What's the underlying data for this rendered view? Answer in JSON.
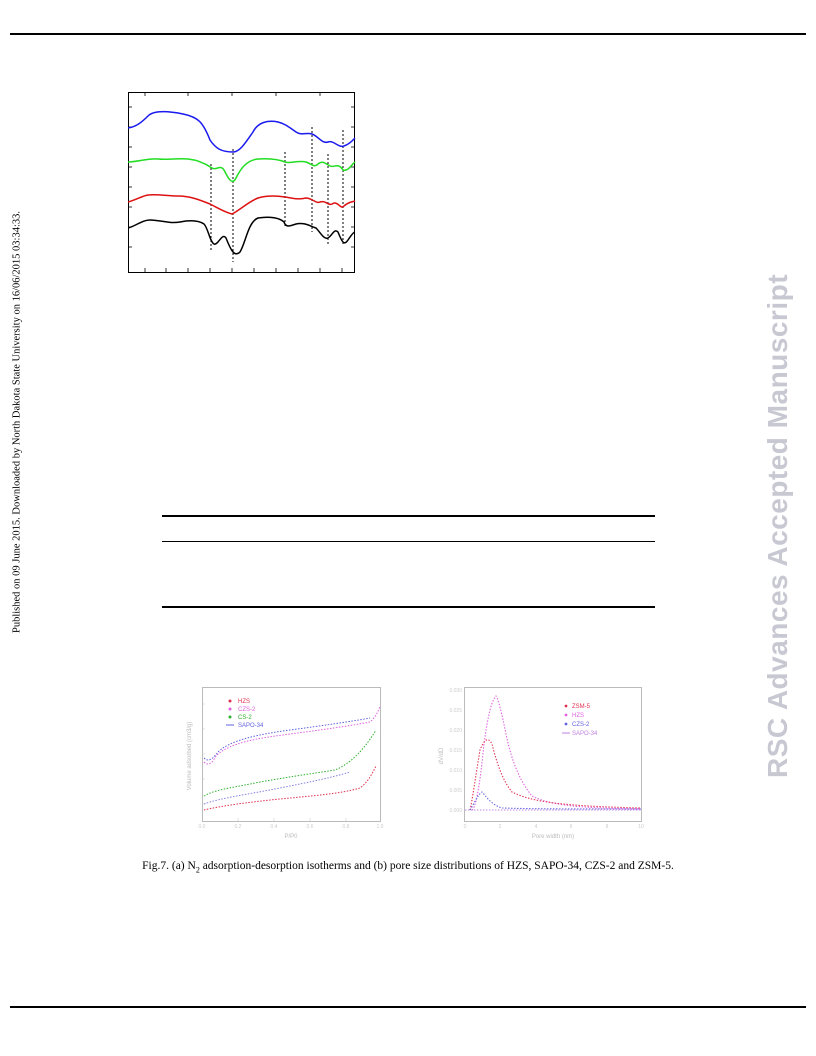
{
  "side_note": "Published on 09 June 2015. Downloaded by North Dakota State University on 16/06/2015 03:34:33.",
  "watermark": "RSC Advances Accepted Manuscript",
  "caption": {
    "prefix": "Fig.7. (a) N",
    "sub": "2",
    "suffix": " adsorption-desorption isotherms and (b) pore size distributions of HZS, SAPO-34, CZS-2 and ZSM-5."
  },
  "chart_data": [
    {
      "type": "line",
      "title": "",
      "xlabel": "",
      "ylabel": "",
      "series_colors": [
        "#1a1aee",
        "#22dd22",
        "#dd1111",
        "#000000"
      ],
      "note": "spectra with dashed reference lines; no axis labels legible"
    },
    {
      "type": "scatter",
      "panel": "a",
      "xlabel": "P/P0",
      "ylabel": "Volume adsorbed (cm3/g)",
      "legend": [
        "HZS",
        "CZS-2",
        "CS-2",
        "SAPO-34"
      ],
      "legend_position": "top-left",
      "colors": [
        "#e03050",
        "#e060e0",
        "#30b030",
        "#6060e0"
      ]
    },
    {
      "type": "scatter",
      "panel": "b",
      "xlabel": "Pore width (nm)",
      "ylabel": "dV/dD",
      "legend": [
        "ZSM-5",
        "HZS",
        "CZS-2",
        "SAPO-34"
      ],
      "legend_position": "top-right",
      "colors": [
        "#e03050",
        "#e060e0",
        "#6060e0",
        "#c080e0"
      ]
    }
  ]
}
